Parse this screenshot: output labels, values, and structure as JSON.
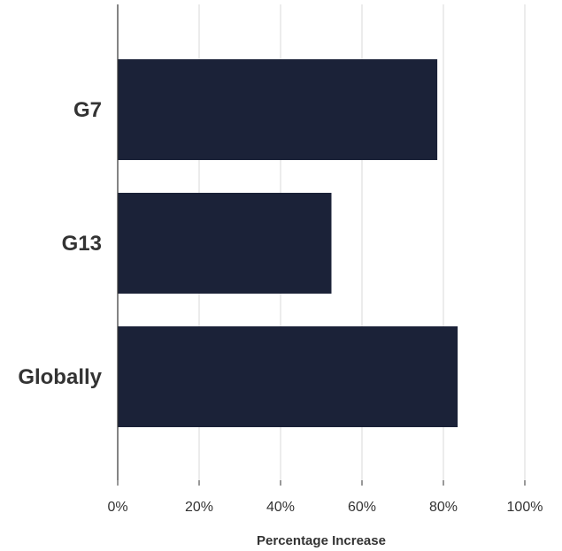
{
  "chart_data": {
    "type": "bar",
    "orientation": "horizontal",
    "categories": [
      "G7",
      "G13",
      "Globally"
    ],
    "values": [
      78.5,
      52.5,
      83.5
    ],
    "xlabel": "Percentage Increase",
    "ylabel": "",
    "xlim": [
      0,
      100
    ],
    "xticks": [
      "0%",
      "20%",
      "40%",
      "60%",
      "80%",
      "100%"
    ],
    "grid": "vertical",
    "legend": "none",
    "colors": {
      "bar": "#1b2238",
      "grid": "#d9d9d9",
      "axis": "#333333",
      "text": "#333333"
    }
  }
}
